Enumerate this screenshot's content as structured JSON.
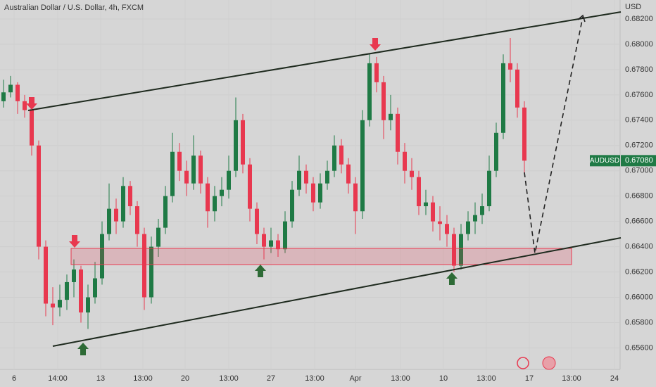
{
  "chart_data": {
    "type": "candlestick",
    "title": "Australian Dollar / U.S. Dollar, 4h, FXCM",
    "y_axis_label": "USD",
    "symbol": "AUDUSD",
    "last_price_label": "0.67080",
    "up_color": "#1f7a45",
    "down_color": "#e8384f",
    "candles": [
      [
        0.6755,
        0.6772,
        0.675,
        0.6762
      ],
      [
        0.6762,
        0.6775,
        0.6758,
        0.6768
      ],
      [
        0.6768,
        0.677,
        0.6745,
        0.6755
      ],
      [
        0.6755,
        0.676,
        0.6742,
        0.6748
      ],
      [
        0.6748,
        0.6752,
        0.6712,
        0.672
      ],
      [
        0.672,
        0.6724,
        0.663,
        0.664
      ],
      [
        0.664,
        0.6645,
        0.6585,
        0.6595
      ],
      [
        0.6595,
        0.6608,
        0.6578,
        0.6592
      ],
      [
        0.6592,
        0.661,
        0.6585,
        0.6598
      ],
      [
        0.6598,
        0.6618,
        0.659,
        0.6612
      ],
      [
        0.6612,
        0.663,
        0.66,
        0.6622
      ],
      [
        0.6622,
        0.6625,
        0.658,
        0.6588
      ],
      [
        0.6588,
        0.661,
        0.6575,
        0.66
      ],
      [
        0.66,
        0.6628,
        0.6595,
        0.6615
      ],
      [
        0.6615,
        0.666,
        0.661,
        0.665
      ],
      [
        0.665,
        0.669,
        0.6645,
        0.667
      ],
      [
        0.667,
        0.6678,
        0.665,
        0.666
      ],
      [
        0.666,
        0.6695,
        0.6655,
        0.6688
      ],
      [
        0.6688,
        0.6692,
        0.6665,
        0.6672
      ],
      [
        0.6672,
        0.6676,
        0.664,
        0.665
      ],
      [
        0.665,
        0.6655,
        0.659,
        0.66
      ],
      [
        0.66,
        0.6648,
        0.6595,
        0.664
      ],
      [
        0.664,
        0.6662,
        0.6632,
        0.6655
      ],
      [
        0.6655,
        0.6688,
        0.665,
        0.668
      ],
      [
        0.668,
        0.673,
        0.6675,
        0.6715
      ],
      [
        0.6715,
        0.6722,
        0.6692,
        0.67
      ],
      [
        0.67,
        0.6708,
        0.668,
        0.669
      ],
      [
        0.669,
        0.6728,
        0.6685,
        0.6712
      ],
      [
        0.6712,
        0.6716,
        0.6682,
        0.669
      ],
      [
        0.669,
        0.6695,
        0.6655,
        0.6668
      ],
      [
        0.6668,
        0.6688,
        0.666,
        0.668
      ],
      [
        0.668,
        0.6695,
        0.6672,
        0.6685
      ],
      [
        0.6685,
        0.6712,
        0.6678,
        0.67
      ],
      [
        0.67,
        0.6758,
        0.6695,
        0.674
      ],
      [
        0.674,
        0.6745,
        0.6698,
        0.6705
      ],
      [
        0.6705,
        0.671,
        0.666,
        0.667
      ],
      [
        0.667,
        0.6675,
        0.6642,
        0.665
      ],
      [
        0.665,
        0.6655,
        0.663,
        0.664
      ],
      [
        0.664,
        0.6655,
        0.6635,
        0.6645
      ],
      [
        0.6645,
        0.665,
        0.6632,
        0.6638
      ],
      [
        0.6638,
        0.6668,
        0.6635,
        0.666
      ],
      [
        0.666,
        0.6692,
        0.6655,
        0.6685
      ],
      [
        0.6685,
        0.6712,
        0.668,
        0.67
      ],
      [
        0.67,
        0.6705,
        0.6682,
        0.669
      ],
      [
        0.669,
        0.6695,
        0.6668,
        0.6675
      ],
      [
        0.6675,
        0.6698,
        0.667,
        0.669
      ],
      [
        0.669,
        0.6708,
        0.6685,
        0.67
      ],
      [
        0.67,
        0.6728,
        0.6695,
        0.672
      ],
      [
        0.672,
        0.6725,
        0.6698,
        0.6705
      ],
      [
        0.6705,
        0.671,
        0.6682,
        0.669
      ],
      [
        0.669,
        0.6695,
        0.665,
        0.6668
      ],
      [
        0.6668,
        0.6748,
        0.6662,
        0.674
      ],
      [
        0.674,
        0.6792,
        0.6735,
        0.6785
      ],
      [
        0.6785,
        0.679,
        0.6762,
        0.677
      ],
      [
        0.677,
        0.6775,
        0.6725,
        0.674
      ],
      [
        0.674,
        0.676,
        0.6732,
        0.6745
      ],
      [
        0.6745,
        0.675,
        0.6705,
        0.6715
      ],
      [
        0.6715,
        0.6722,
        0.669,
        0.67
      ],
      [
        0.67,
        0.671,
        0.6685,
        0.6695
      ],
      [
        0.6695,
        0.67,
        0.6665,
        0.6672
      ],
      [
        0.6672,
        0.6685,
        0.6665,
        0.6675
      ],
      [
        0.6675,
        0.668,
        0.6652,
        0.666
      ],
      [
        0.666,
        0.6672,
        0.6645,
        0.6658
      ],
      [
        0.6658,
        0.6665,
        0.664,
        0.665
      ],
      [
        0.665,
        0.6655,
        0.662,
        0.6625
      ],
      [
        0.6625,
        0.6658,
        0.6622,
        0.665
      ],
      [
        0.665,
        0.6668,
        0.6645,
        0.666
      ],
      [
        0.666,
        0.6675,
        0.665,
        0.6665
      ],
      [
        0.6665,
        0.6682,
        0.6658,
        0.6672
      ],
      [
        0.6672,
        0.6712,
        0.6668,
        0.67
      ],
      [
        0.67,
        0.6738,
        0.6695,
        0.673
      ],
      [
        0.673,
        0.6792,
        0.6725,
        0.6785
      ],
      [
        0.6785,
        0.6805,
        0.677,
        0.678
      ],
      [
        0.678,
        0.6785,
        0.6742,
        0.675
      ],
      [
        0.675,
        0.6755,
        0.6698,
        0.6708
      ]
    ],
    "xlim": [
      -0.5,
      87.5
    ],
    "xticks": [
      {
        "value": 1.5,
        "label": "6"
      },
      {
        "value": 7.7,
        "label": "14:00"
      },
      {
        "value": 13.8,
        "label": "13"
      },
      {
        "value": 19.8,
        "label": "13:00"
      },
      {
        "value": 25.8,
        "label": "20"
      },
      {
        "value": 32,
        "label": "13:00"
      },
      {
        "value": 38,
        "label": "27"
      },
      {
        "value": 44.2,
        "label": "13:00"
      },
      {
        "value": 50,
        "label": "Apr"
      },
      {
        "value": 56.4,
        "label": "13:00"
      },
      {
        "value": 62.5,
        "label": "10"
      },
      {
        "value": 68.6,
        "label": "13:00"
      },
      {
        "value": 74.7,
        "label": "17"
      },
      {
        "value": 80.7,
        "label": "13:00"
      },
      {
        "value": 86.8,
        "label": "24"
      }
    ],
    "ylim": [
      0.6543,
      0.6835
    ],
    "yticks": [
      {
        "value": 0.682,
        "label": "0.68200"
      },
      {
        "value": 0.68,
        "label": "0.68000"
      },
      {
        "value": 0.678,
        "label": "0.67800"
      },
      {
        "value": 0.676,
        "label": "0.67600"
      },
      {
        "value": 0.674,
        "label": "0.67400"
      },
      {
        "value": 0.672,
        "label": "0.67200"
      },
      {
        "value": 0.67,
        "label": "0.67000"
      },
      {
        "value": 0.668,
        "label": "0.66800"
      },
      {
        "value": 0.666,
        "label": "0.66600"
      },
      {
        "value": 0.664,
        "label": "0.66400"
      },
      {
        "value": 0.662,
        "label": "0.66200"
      },
      {
        "value": 0.66,
        "label": "0.66000"
      },
      {
        "value": 0.658,
        "label": "0.65800"
      },
      {
        "value": 0.656,
        "label": "0.65600"
      }
    ],
    "grid": true
  }
}
